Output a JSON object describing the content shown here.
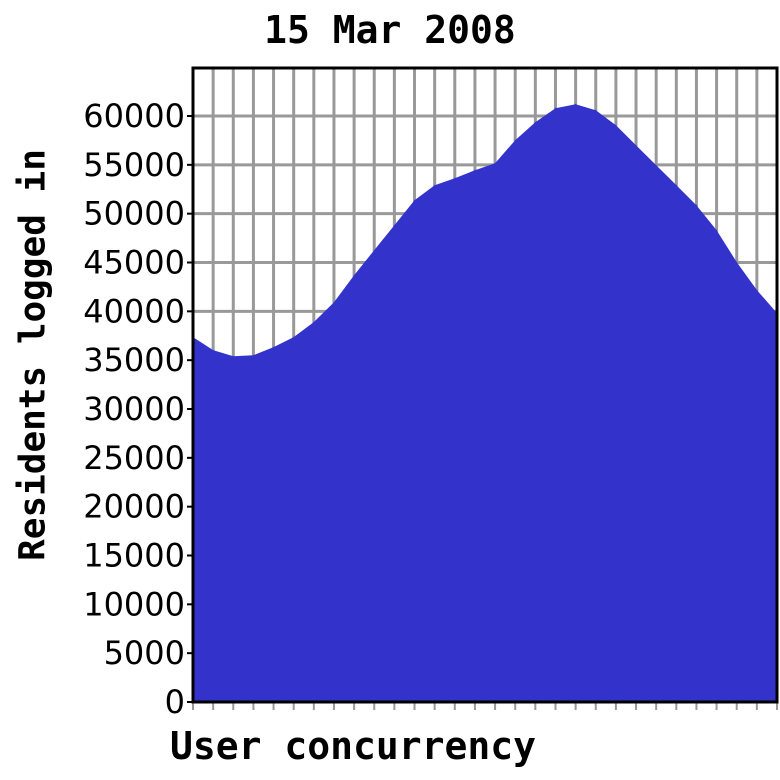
{
  "chart_data": {
    "type": "area",
    "title": "15 Mar 2008",
    "xlabel": "User concurrency",
    "ylabel": "Residents logged in",
    "ylim": [
      0,
      62000
    ],
    "yticks": [
      0,
      5000,
      10000,
      15000,
      20000,
      25000,
      30000,
      35000,
      40000,
      45000,
      50000,
      55000,
      60000
    ],
    "grid": true,
    "fill_color": "#3333cc",
    "grid_color": "#999999",
    "series": [
      {
        "values": [
          37360,
          36030,
          35400,
          35500,
          36340,
          37360,
          38900,
          40940,
          43700,
          46260,
          48820,
          51380,
          52900,
          53630,
          54450,
          55170,
          57520,
          59360,
          60800,
          61200,
          60590,
          59060,
          57010,
          54960,
          52920,
          50870,
          48310,
          45040,
          42170,
          39820
        ]
      }
    ]
  }
}
